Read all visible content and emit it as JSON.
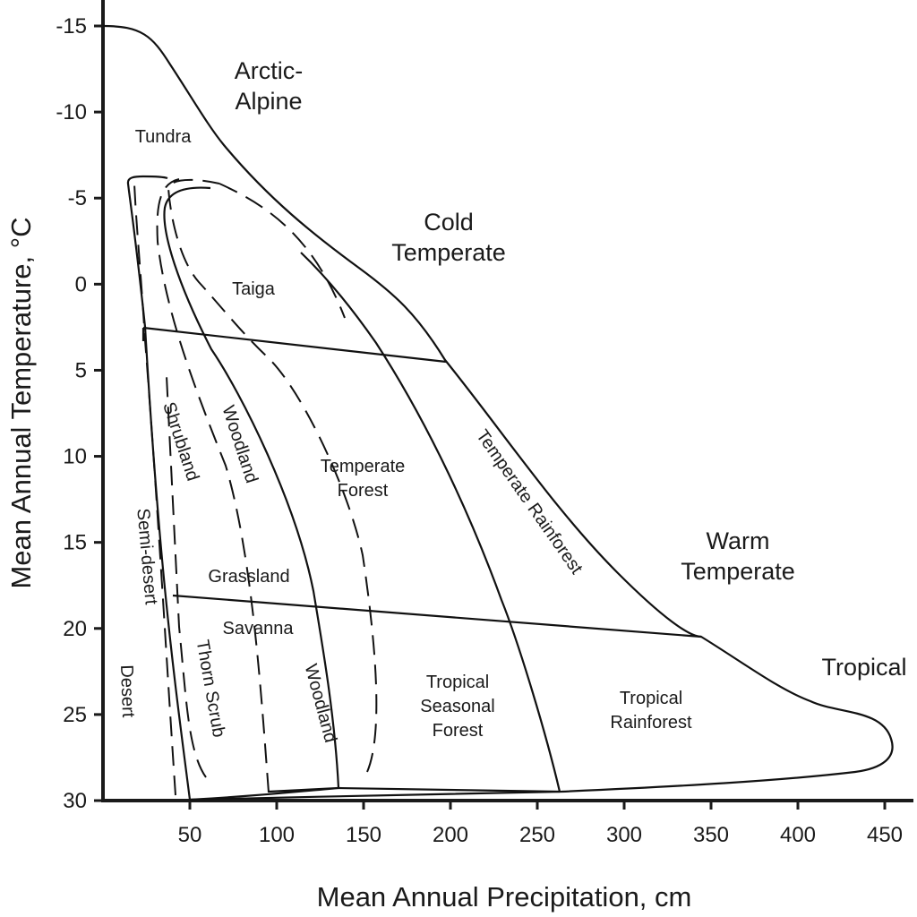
{
  "chart_data": {
    "type": "diagram",
    "xlabel": "Mean Annual Precipitation, cm",
    "ylabel": "Mean Annual Temperature, °C",
    "x_ticks": [
      "50",
      "100",
      "150",
      "200",
      "250",
      "300",
      "350",
      "400",
      "450"
    ],
    "y_ticks": [
      "-15",
      "-10",
      "-5",
      "0",
      "5",
      "10",
      "15",
      "20",
      "25",
      "30"
    ],
    "xlim": [
      0,
      460
    ],
    "ylim": [
      -15,
      30
    ],
    "zones": [
      {
        "label_lines": [
          "Arctic-",
          "Alpine"
        ]
      },
      {
        "label_lines": [
          "Cold",
          "Temperate"
        ]
      },
      {
        "label_lines": [
          "Warm",
          "Temperate"
        ]
      },
      {
        "label_lines": [
          "Tropical"
        ]
      }
    ],
    "biomes": [
      {
        "label_lines": [
          "Tundra"
        ]
      },
      {
        "label_lines": [
          "Taiga"
        ]
      },
      {
        "label_lines": [
          "Shrubland"
        ]
      },
      {
        "label_lines": [
          "Woodland"
        ]
      },
      {
        "label_lines": [
          "Temperate",
          "Forest"
        ]
      },
      {
        "label_lines": [
          "Temperate Rainforest"
        ]
      },
      {
        "label_lines": [
          "Semi-desert"
        ]
      },
      {
        "label_lines": [
          "Grassland"
        ]
      },
      {
        "label_lines": [
          "Savanna"
        ]
      },
      {
        "label_lines": [
          "Thorn Scrub"
        ]
      },
      {
        "label_lines": [
          "Woodland"
        ]
      },
      {
        "label_lines": [
          "Desert"
        ]
      },
      {
        "label_lines": [
          "Tropical",
          "Seasonal",
          "Forest"
        ]
      },
      {
        "label_lines": [
          "Tropical",
          "Rainforest"
        ]
      }
    ]
  }
}
